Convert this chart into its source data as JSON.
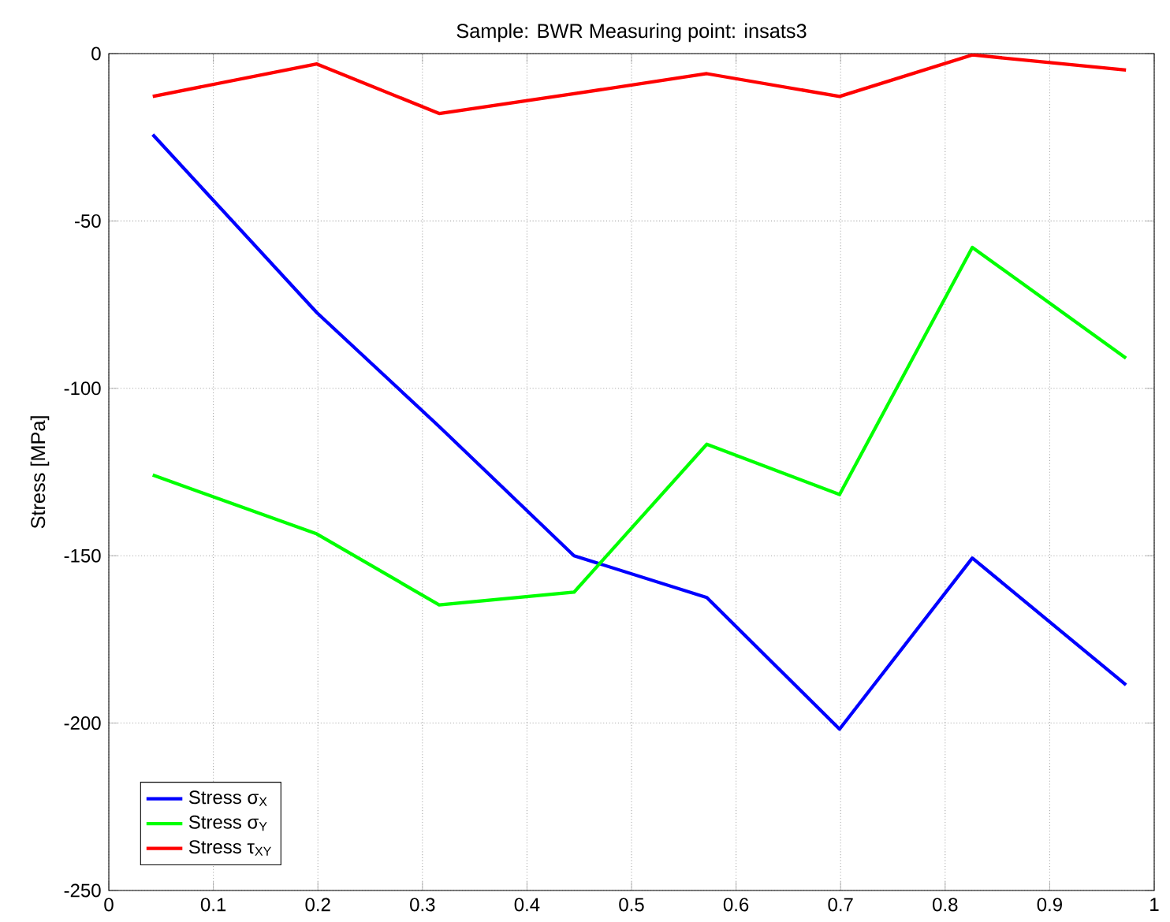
{
  "chart_data": {
    "type": "line",
    "title": "Sample: BWR    Measuring point: insats3",
    "ylabel": "Stress [MPa]",
    "x": [
      0.042,
      0.199,
      0.316,
      0.445,
      0.572,
      0.699,
      0.826,
      0.973
    ],
    "series": [
      {
        "name": "Stress σ$_{X}$",
        "color": "#0000ff",
        "values": [
          -24.2,
          -77.4,
          -111.4,
          -150,
          -162.5,
          -201.8,
          -150.7,
          -188.6
        ]
      },
      {
        "name": "Stress σ$_{Y}$",
        "color": "#00ff00",
        "values": [
          -125.9,
          -143.5,
          -164.7,
          -160.9,
          -116.7,
          -131.7,
          -57.9,
          -91
        ]
      },
      {
        "name": "Stress τ$_{XY}$",
        "color": "#ff0000",
        "values": [
          -12.8,
          -3.1,
          -17.9,
          -12,
          -6,
          -12.8,
          -0.4,
          -4.9
        ]
      }
    ],
    "xlim": [
      0,
      1
    ],
    "ylim": [
      -250,
      0
    ],
    "xticks": [
      0,
      0.1,
      0.2,
      0.3,
      0.4,
      0.5,
      0.6,
      0.7,
      0.8,
      0.9,
      1
    ],
    "yticks": [
      -250,
      -200,
      -150,
      -100,
      -50,
      0
    ],
    "grid": true,
    "legend": "bottom left",
    "line_style": "solid",
    "marker": "none"
  }
}
